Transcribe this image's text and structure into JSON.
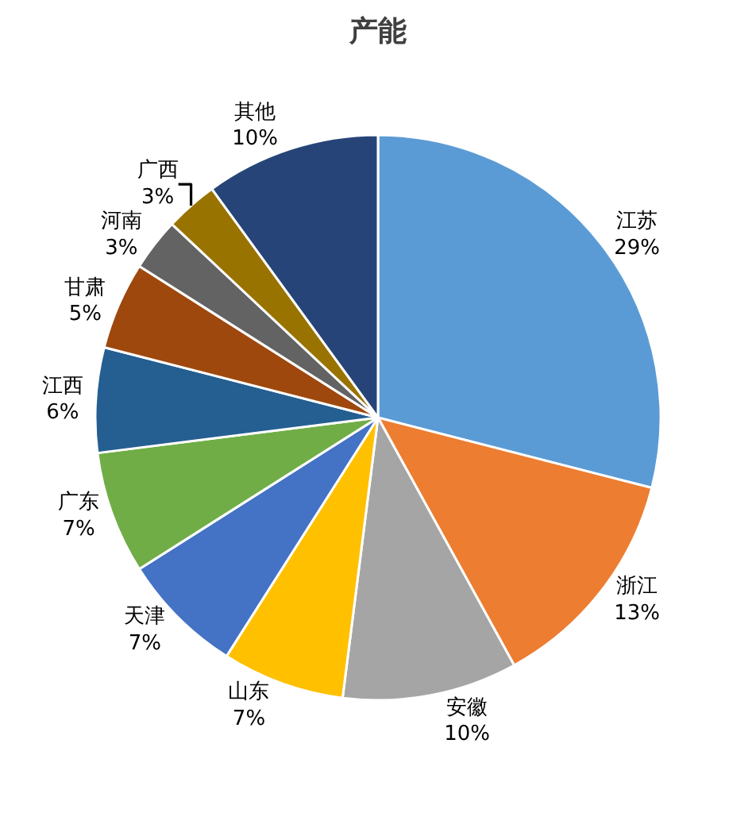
{
  "chart_data": {
    "type": "pie",
    "title": "产能",
    "categories": [
      "江苏",
      "浙江",
      "安徽",
      "山东",
      "天津",
      "广东",
      "江西",
      "甘肃",
      "河南",
      "广西",
      "其他"
    ],
    "values": [
      29,
      13,
      10,
      7,
      7,
      7,
      6,
      5,
      3,
      3,
      10
    ],
    "value_labels": [
      "29%",
      "13%",
      "10%",
      "7%",
      "7%",
      "7%",
      "6%",
      "5%",
      "3%",
      "3%",
      "10%"
    ],
    "colors": [
      "#5b9bd5",
      "#ed7d31",
      "#a5a5a5",
      "#ffc000",
      "#4472c4",
      "#70ad47",
      "#255e91",
      "#9e480e",
      "#636363",
      "#997300",
      "#264478"
    ],
    "legend": false
  }
}
